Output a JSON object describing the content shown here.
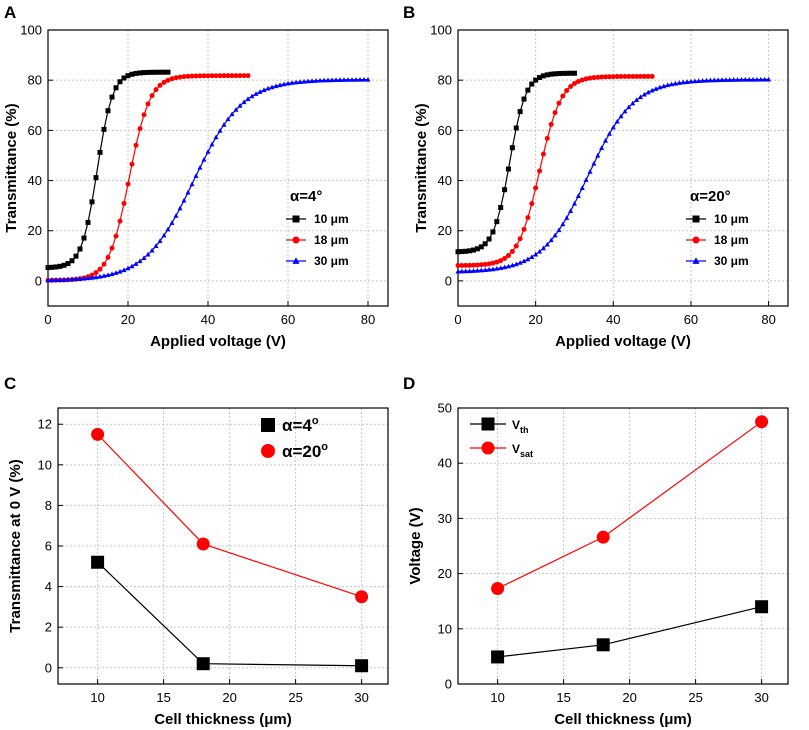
{
  "chart_data": [
    {
      "panel": "A",
      "type": "line",
      "xlabel": "Applied voltage (V)",
      "ylabel": "Transmittance (%)",
      "xlim": [
        0,
        85
      ],
      "ylim": [
        -10,
        100
      ],
      "xticks": [
        0,
        20,
        40,
        60,
        80
      ],
      "yticks": [
        0,
        20,
        40,
        60,
        80,
        100
      ],
      "legend_title": "α=4°",
      "legend_position": "right-middle",
      "series": [
        {
          "name": "10 μm",
          "color": "#000000",
          "marker": "square",
          "vmax": 30,
          "params": {
            "t0": 5.2,
            "tmax": 83.2,
            "vc": 12.3,
            "k": 0.52
          }
        },
        {
          "name": "18 μm",
          "color": "#ff0000",
          "marker": "circle",
          "vmax": 50,
          "params": {
            "t0": 0.2,
            "tmax": 81.8,
            "vc": 20.3,
            "k": 0.39
          }
        },
        {
          "name": "30 μm",
          "color": "#0000ff",
          "marker": "triangle",
          "vmax": 80,
          "params": {
            "t0": 0.1,
            "tmax": 80.3,
            "vc": 36.5,
            "k": 0.165
          }
        }
      ]
    },
    {
      "panel": "B",
      "type": "line",
      "xlabel": "Applied voltage (V)",
      "ylabel": "Transmittance (%)",
      "xlim": [
        0,
        85
      ],
      "ylim": [
        -10,
        100
      ],
      "xticks": [
        0,
        20,
        40,
        60,
        80
      ],
      "yticks": [
        0,
        20,
        40,
        60,
        80,
        100
      ],
      "legend_title": "α=20°",
      "legend_position": "right-middle",
      "series": [
        {
          "name": "10 μm",
          "color": "#000000",
          "marker": "square",
          "vmax": 30,
          "params": {
            "t0": 11.5,
            "tmax": 82.8,
            "vc": 13.3,
            "k": 0.48
          }
        },
        {
          "name": "18 μm",
          "color": "#ff0000",
          "marker": "circle",
          "vmax": 50,
          "params": {
            "t0": 6.1,
            "tmax": 81.5,
            "vc": 21.0,
            "k": 0.36
          }
        },
        {
          "name": "30 μm",
          "color": "#0000ff",
          "marker": "triangle",
          "vmax": 80,
          "params": {
            "t0": 3.5,
            "tmax": 80.3,
            "vc": 33.5,
            "k": 0.17
          }
        }
      ]
    },
    {
      "panel": "C",
      "type": "line",
      "xlabel": "Cell thickness (μm)",
      "ylabel": "Transmittance at 0 V (%)",
      "xlim": [
        7,
        32
      ],
      "ylim": [
        -0.8,
        12.8
      ],
      "xticks": [
        10,
        15,
        20,
        25,
        30
      ],
      "yticks": [
        0,
        2,
        4,
        6,
        8,
        10,
        12
      ],
      "legend_position": "top-right",
      "series": [
        {
          "name": "α=4",
          "superscript": "o",
          "color": "#000000",
          "marker": "square",
          "x": [
            10,
            18,
            30
          ],
          "values": [
            5.2,
            0.2,
            0.1
          ]
        },
        {
          "name": "α=20",
          "superscript": "o",
          "color": "#ff0000",
          "marker": "circle",
          "x": [
            10,
            18,
            30
          ],
          "values": [
            11.5,
            6.1,
            3.5
          ]
        }
      ]
    },
    {
      "panel": "D",
      "type": "line",
      "xlabel": "Cell thickness (μm)",
      "ylabel": "Voltage (V)",
      "xlim": [
        7,
        32
      ],
      "ylim": [
        0,
        50
      ],
      "xticks": [
        10,
        15,
        20,
        25,
        30
      ],
      "yticks": [
        0,
        10,
        20,
        30,
        40,
        50
      ],
      "legend_position": "top-left",
      "series": [
        {
          "name": "V",
          "subscript": "th",
          "color": "#000000",
          "marker": "square",
          "x": [
            10,
            18,
            30
          ],
          "values": [
            4.9,
            7.1,
            14.0
          ]
        },
        {
          "name": "V",
          "subscript": "sat",
          "color": "#ff0000",
          "marker": "circle",
          "x": [
            10,
            18,
            30
          ],
          "values": [
            17.3,
            26.6,
            47.5
          ]
        }
      ]
    }
  ]
}
